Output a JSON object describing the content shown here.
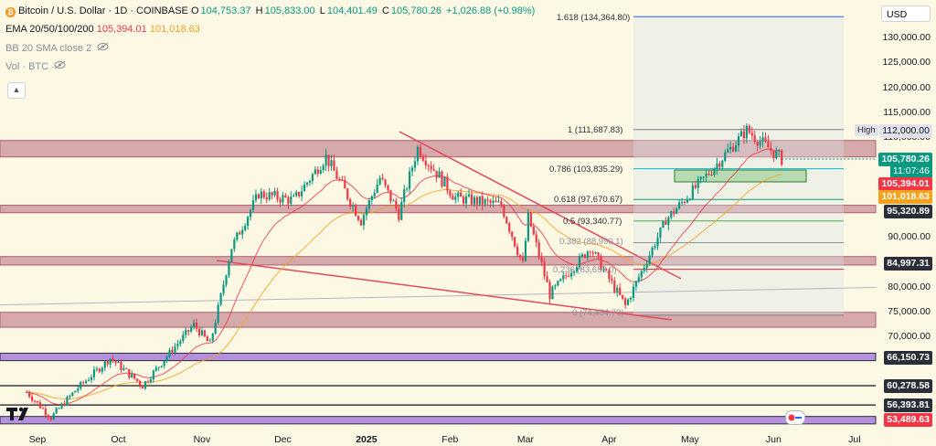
{
  "legend": {
    "title": "Bitcoin / U.S. Dollar · 1D · COINBASE",
    "o_label": "O",
    "o": "104,753.37",
    "h_label": "H",
    "h": "105,833.00",
    "l_label": "L",
    "l": "104,401.49",
    "c_label": "C",
    "c": "105,780.26",
    "change": "+1,026.88 (+0.98%)",
    "ema_label": "EMA 20/50/100/200",
    "ema_20": "105,394.01",
    "ema_50": "101,018.63",
    "bb_label": "BB 20 SMA close 2",
    "vol_label": "Vol · BTC"
  },
  "currency_select": "USD",
  "price_labels": {
    "current_price": "105,780.26",
    "countdown": "11:07:46",
    "ema20": "105,394.01",
    "ema50": "101,018.63",
    "level_95k": "95,320.89",
    "level_85k": "84,997.31",
    "level_66k": "66,150.73",
    "level_60k": "60,278.58",
    "level_56k": "56,393.81",
    "level_53k": "53,489.63",
    "high_tag": "High",
    "high_value": "112,000.00"
  },
  "fib_labels": {
    "f1618": "1.618 (134,364.80)",
    "f1": "1 (111,687.83)",
    "f786": "0.786 (103,835.29)",
    "f618": "0.618 (97,670.67)",
    "f5": "0.5 (93,340.77)",
    "f382": "0.382 (88,990.1)",
    "f236": "0.236 (83,653.0)",
    "f0": "0 (74,434.70)"
  },
  "colors": {
    "background": "#fdf8e4",
    "bull": "#089981",
    "bear": "#f23645",
    "ema20": "#f23645",
    "ema50": "#f7a21b",
    "zone": "#b05a70",
    "support_band": "#9c6ed9",
    "current_price_bg": "#089981",
    "level_bg": "#2a2e39"
  },
  "chart_data": {
    "type": "candlestick",
    "symbol": "Bitcoin / U.S. Dollar",
    "interval": "1D",
    "exchange": "COINBASE",
    "y_ticks": [
      130000,
      125000,
      120000,
      115000,
      110000,
      90000,
      80000,
      75000,
      70000
    ],
    "y_tick_labels": [
      "130,000.00",
      "125,000.00",
      "120,000.00",
      "115,000.00",
      "110,000.00",
      "90,000.00",
      "80,000.00",
      "75,000.00",
      "70,000.00"
    ],
    "x_ticks": [
      "Sep",
      "Oct",
      "Nov",
      "Dec",
      "2025",
      "Feb",
      "Mar",
      "Apr",
      "May",
      "Jun",
      "Jul"
    ],
    "close_path": [
      {
        "x": "2024-08-28",
        "y": 59000
      },
      {
        "x": "2024-09-06",
        "y": 53900
      },
      {
        "x": "2024-09-15",
        "y": 59300
      },
      {
        "x": "2024-09-28",
        "y": 65800
      },
      {
        "x": "2024-10-10",
        "y": 60300
      },
      {
        "x": "2024-10-21",
        "y": 67500
      },
      {
        "x": "2024-10-29",
        "y": 72500
      },
      {
        "x": "2024-11-04",
        "y": 68500
      },
      {
        "x": "2024-11-12",
        "y": 88000
      },
      {
        "x": "2024-11-22",
        "y": 98800
      },
      {
        "x": "2024-12-05",
        "y": 97500
      },
      {
        "x": "2024-12-17",
        "y": 106200
      },
      {
        "x": "2024-12-30",
        "y": 93500
      },
      {
        "x": "2025-01-06",
        "y": 102000
      },
      {
        "x": "2025-01-13",
        "y": 94800
      },
      {
        "x": "2025-01-20",
        "y": 108000
      },
      {
        "x": "2025-02-03",
        "y": 98000
      },
      {
        "x": "2025-02-20",
        "y": 96500
      },
      {
        "x": "2025-02-28",
        "y": 84500
      },
      {
        "x": "2025-03-02",
        "y": 94200
      },
      {
        "x": "2025-03-10",
        "y": 78600
      },
      {
        "x": "2025-03-25",
        "y": 88000
      },
      {
        "x": "2025-04-07",
        "y": 76300
      },
      {
        "x": "2025-04-22",
        "y": 93500
      },
      {
        "x": "2025-05-08",
        "y": 103000
      },
      {
        "x": "2025-05-22",
        "y": 111600
      },
      {
        "x": "2025-06-04",
        "y": 105780
      }
    ]
  }
}
